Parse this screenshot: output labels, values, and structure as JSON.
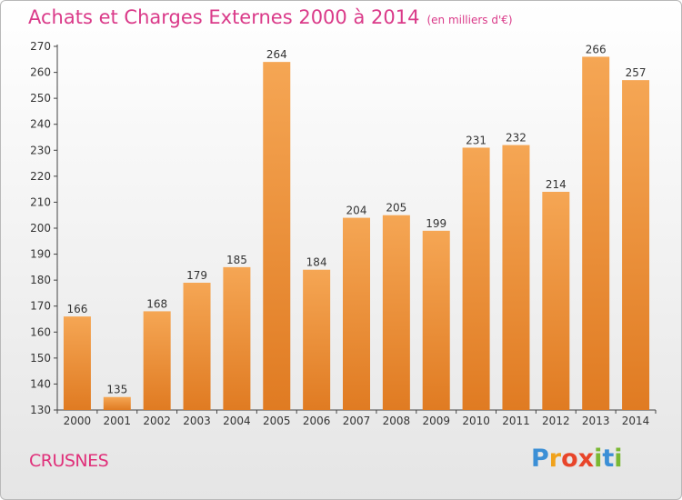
{
  "header": {
    "title": "Achats et Charges Externes 2000 à 2014",
    "unit": "(en milliers d'€)"
  },
  "footer": {
    "town": "CRUSNES",
    "logo": {
      "letters": [
        "P",
        "r",
        "o",
        "x",
        "i",
        "t",
        "i"
      ]
    }
  },
  "colors": {
    "bar_top": "#f5a654",
    "bar_bottom": "#e07b22",
    "title": "#da3a89",
    "logo": [
      "#3b8fd6",
      "#f0a21c",
      "#e8452a",
      "#e8452a",
      "#7ab833",
      "#3b8fd6",
      "#7ab833"
    ]
  },
  "chart_data": {
    "type": "bar",
    "categories": [
      "2000",
      "2001",
      "2002",
      "2003",
      "2004",
      "2005",
      "2006",
      "2007",
      "2008",
      "2009",
      "2010",
      "2011",
      "2012",
      "2013",
      "2014"
    ],
    "values": [
      166,
      135,
      168,
      179,
      185,
      264,
      184,
      204,
      205,
      199,
      231,
      232,
      214,
      266,
      257
    ],
    "title": "Achats et Charges Externes 2000 à 2014",
    "ylabel": "",
    "xlabel": "",
    "ylim": [
      130,
      270
    ],
    "yticks": [
      130,
      140,
      150,
      160,
      170,
      180,
      190,
      200,
      210,
      220,
      230,
      240,
      250,
      260,
      270
    ],
    "grid": false
  }
}
